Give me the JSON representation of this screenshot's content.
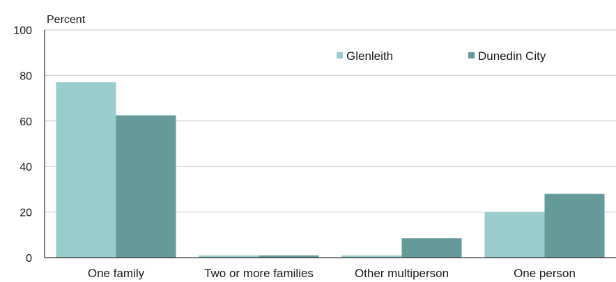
{
  "chart_data": {
    "type": "bar",
    "ylabel": "Percent",
    "categories": [
      "One family",
      "Two or more families",
      "Other multiperson",
      "One person"
    ],
    "series": [
      {
        "name": "Glenleith",
        "values": [
          77,
          1,
          1,
          20
        ],
        "color": "#99cccc"
      },
      {
        "name": "Dunedin City",
        "values": [
          62.5,
          1,
          8.5,
          28
        ],
        "color": "#669999"
      }
    ],
    "ylim": [
      0,
      100
    ],
    "yticks": [
      0,
      20,
      40,
      60,
      80,
      100
    ],
    "grid": true,
    "legend_position": "top-right"
  }
}
